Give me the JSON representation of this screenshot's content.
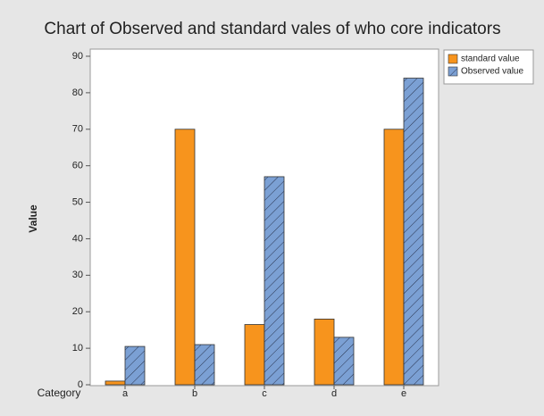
{
  "chart_data": {
    "type": "bar",
    "title": "Chart of Observed and standard vales of who core indicators",
    "x_label": "Category",
    "y_label": "Value",
    "categories": [
      "a",
      "b",
      "c",
      "d",
      "e"
    ],
    "series": [
      {
        "name": "standard value",
        "color": "#f7941d",
        "values": [
          1,
          70,
          16.5,
          18,
          70
        ]
      },
      {
        "name": "Observed value",
        "color": "#7ba0d4",
        "pattern": "hatch",
        "values": [
          10.5,
          11,
          57,
          13,
          84
        ]
      }
    ],
    "ylim": [
      0,
      90
    ],
    "yticks": [
      0,
      10,
      20,
      30,
      40,
      50,
      60,
      70,
      80,
      90
    ],
    "legend": "right"
  }
}
